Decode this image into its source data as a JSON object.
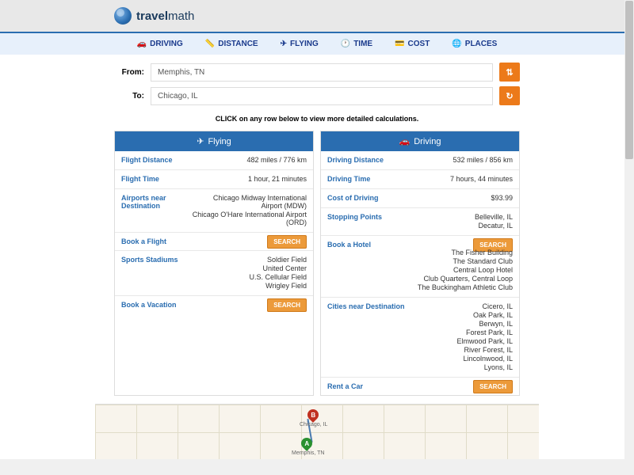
{
  "logo": {
    "bold": "travel",
    "light": "math"
  },
  "nav": [
    {
      "icon": "🚗",
      "label": "DRIVING"
    },
    {
      "icon": "📏",
      "label": "DISTANCE"
    },
    {
      "icon": "✈",
      "label": "FLYING"
    },
    {
      "icon": "🕐",
      "label": "TIME"
    },
    {
      "icon": "💳",
      "label": "COST"
    },
    {
      "icon": "🌐",
      "label": "PLACES"
    }
  ],
  "search": {
    "from_label": "From:",
    "from_value": "Memphis, TN",
    "to_label": "To:",
    "to_value": "Chicago, IL"
  },
  "hint": "CLICK on any row below to view more detailed calculations.",
  "flying": {
    "title": "Flying",
    "icon": "✈",
    "rows": [
      {
        "label": "Flight Distance",
        "values": [
          "482 miles / 776 km"
        ]
      },
      {
        "label": "Flight Time",
        "values": [
          "1 hour, 21 minutes"
        ]
      },
      {
        "label": "Airports near Destination",
        "values": [
          "Chicago Midway International Airport (MDW)",
          "Chicago O'Hare International Airport (ORD)"
        ]
      },
      {
        "label": "Book a Flight",
        "button": "SEARCH"
      },
      {
        "label": "Sports Stadiums",
        "values": [
          "Soldier Field",
          "United Center",
          "U.S. Cellular Field",
          "Wrigley Field"
        ]
      },
      {
        "label": "Book a Vacation",
        "button": "SEARCH"
      }
    ]
  },
  "driving": {
    "title": "Driving",
    "icon": "🚗",
    "rows": [
      {
        "label": "Driving Distance",
        "values": [
          "532 miles / 856 km"
        ]
      },
      {
        "label": "Driving Time",
        "values": [
          "7 hours, 44 minutes"
        ]
      },
      {
        "label": "Cost of Driving",
        "values": [
          "$93.99"
        ]
      },
      {
        "label": "Stopping Points",
        "values": [
          "Belleville, IL",
          "Decatur, IL"
        ]
      },
      {
        "label": "Book a Hotel",
        "button": "SEARCH",
        "values": [
          "The Fisher Building",
          "The Standard Club",
          "Central Loop Hotel",
          "Club Quarters, Central Loop",
          "The Buckingham Athletic Club"
        ]
      },
      {
        "label": "Cities near Destination",
        "values": [
          "Cicero, IL",
          "Oak Park, IL",
          "Berwyn, IL",
          "Forest Park, IL",
          "Elmwood Park, IL",
          "River Forest, IL",
          "Lincolnwood, IL",
          "Lyons, IL"
        ]
      },
      {
        "label": "Rent a Car",
        "button": "SEARCH"
      }
    ]
  },
  "map": {
    "a_label": "Memphis, TN",
    "b_label": "Chicago, IL"
  },
  "colors": {
    "primary": "#2a6db0",
    "accent": "#ec7a1a",
    "navbg": "#e7f0fb"
  }
}
